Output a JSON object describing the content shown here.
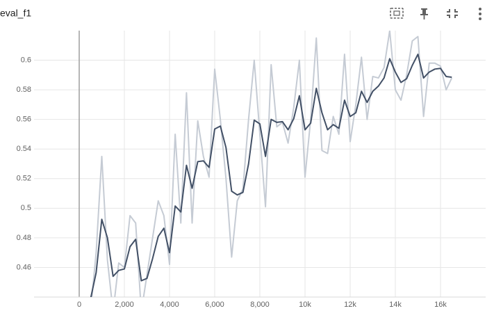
{
  "chart_data": {
    "type": "line",
    "title": "eval_f1",
    "x": [
      500,
      750,
      1000,
      1250,
      1500,
      1750,
      2000,
      2250,
      2500,
      2750,
      3000,
      3250,
      3500,
      3750,
      4000,
      4250,
      4500,
      4750,
      5000,
      5250,
      5500,
      5750,
      6000,
      6250,
      6500,
      6750,
      7000,
      7250,
      7500,
      7750,
      8000,
      8250,
      8500,
      8750,
      9000,
      9250,
      9500,
      9750,
      10000,
      10250,
      10500,
      10750,
      11000,
      11250,
      11500,
      11750,
      12000,
      12250,
      12500,
      12750,
      13000,
      13250,
      13500,
      13750,
      14000,
      14250,
      14500,
      14750,
      15000,
      15250,
      15500,
      15750,
      16000,
      16250,
      16500
    ],
    "series": [
      {
        "color": "#c5cbd4",
        "values": [
          0.43,
          0.47,
          0.535,
          0.465,
          0.43,
          0.463,
          0.46,
          0.495,
          0.49,
          0.43,
          0.455,
          0.48,
          0.505,
          0.495,
          0.462,
          0.55,
          0.49,
          0.578,
          0.49,
          0.559,
          0.535,
          0.521,
          0.594,
          0.56,
          0.52,
          0.467,
          0.505,
          0.513,
          0.56,
          0.6,
          0.55,
          0.501,
          0.597,
          0.555,
          0.558,
          0.544,
          0.568,
          0.6,
          0.521,
          0.56,
          0.615,
          0.539,
          0.537,
          0.562,
          0.55,
          0.604,
          0.545,
          0.57,
          0.602,
          0.56,
          0.589,
          0.588,
          0.595,
          0.62,
          0.58,
          0.573,
          0.59,
          0.613,
          0.616,
          0.562,
          0.598,
          0.598,
          0.596,
          0.58,
          0.588
        ]
      },
      {
        "color": "#425066",
        "values": [
          0.4386,
          0.4565,
          0.4925,
          0.48,
          0.454,
          0.458,
          0.459,
          0.474,
          0.479,
          0.451,
          0.4526,
          0.466,
          0.481,
          0.4865,
          0.47,
          0.5015,
          0.4975,
          0.529,
          0.5135,
          0.5315,
          0.532,
          0.5276,
          0.5535,
          0.5555,
          0.541,
          0.5115,
          0.509,
          0.5107,
          0.53,
          0.5595,
          0.557,
          0.535,
          0.56,
          0.558,
          0.5585,
          0.553,
          0.5605,
          0.576,
          0.553,
          0.5575,
          0.581,
          0.5645,
          0.553,
          0.5565,
          0.554,
          0.573,
          0.562,
          0.5645,
          0.579,
          0.5715,
          0.579,
          0.5825,
          0.588,
          0.601,
          0.592,
          0.585,
          0.5875,
          0.5965,
          0.604,
          0.588,
          0.592,
          0.594,
          0.5945,
          0.589,
          0.5885
        ]
      }
    ],
    "xlim": [
      -2000,
      18000
    ],
    "xticks": [
      0,
      {
        "value": 2000,
        "label": "2,000"
      },
      {
        "value": 4000,
        "label": "4,000"
      },
      {
        "value": 6000,
        "label": "6,000"
      },
      {
        "value": 8000,
        "label": "8,000"
      },
      {
        "value": 10000,
        "label": "10k"
      },
      {
        "value": 12000,
        "label": "12k"
      },
      {
        "value": 14000,
        "label": "14k"
      },
      {
        "value": 16000,
        "label": "16k"
      }
    ],
    "ylim": [
      0.44,
      0.62
    ],
    "yticks": [
      0.46,
      0.48,
      0.5,
      0.52,
      0.54,
      0.56,
      0.58,
      0.6
    ],
    "grid": true
  }
}
